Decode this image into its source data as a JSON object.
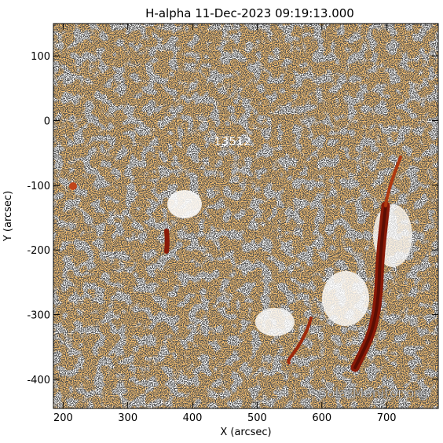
{
  "title": "H-alpha 11-Dec-2023 09:19:13.000",
  "axes": {
    "xlabel": "X (arcsec)",
    "ylabel": "Y (arcsec)",
    "xlim": [
      185,
      780
    ],
    "ylim": [
      -445,
      150
    ],
    "x_ticks": [
      200,
      300,
      400,
      500,
      600,
      700
    ],
    "y_ticks": [
      100,
      0,
      -100,
      -200,
      -300,
      -400
    ]
  },
  "region_label": {
    "text": "13512",
    "x": 462,
    "y": -38
  },
  "watermark": "SolarMonitor.org",
  "colors": {
    "chromosphere": "#f08a2a",
    "chromosphere_dark": "#c8541a",
    "filament": "#8a1a08",
    "noise": "#1a1a1a",
    "background": "#ffffff"
  }
}
